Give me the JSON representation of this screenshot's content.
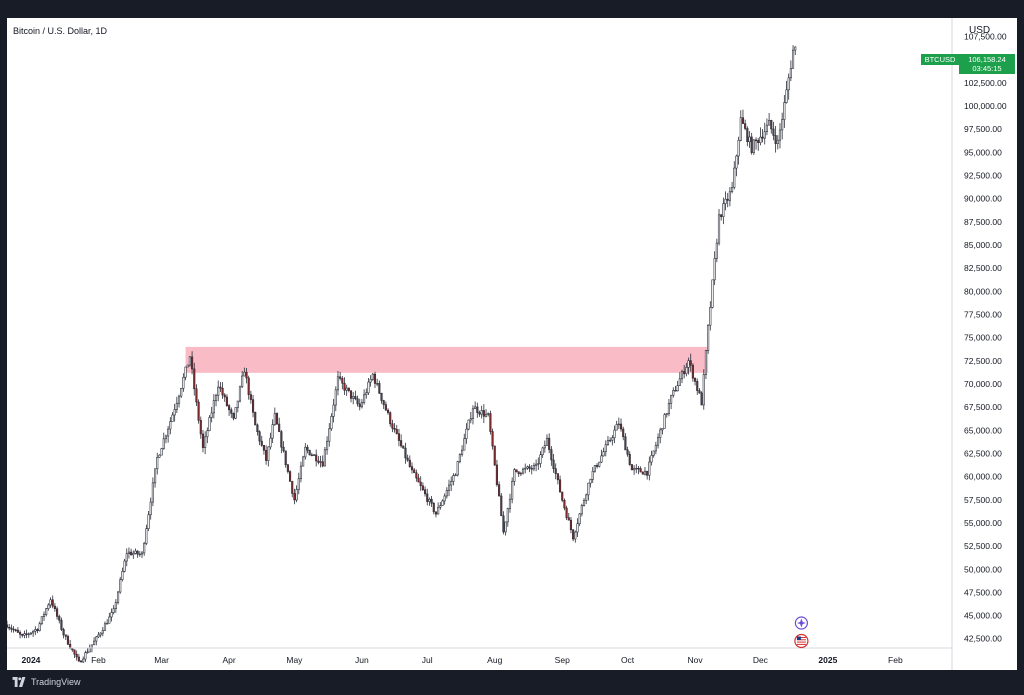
{
  "header": {
    "title": "Bitcoin / U.S. Dollar, 1D",
    "currency": "USD"
  },
  "last_price": {
    "symbol": "BTCUSD",
    "price": "106,158.24",
    "countdown": "03:45:15"
  },
  "footer": {
    "brand": "TradingView",
    "icon": "tradingview-logo-icon"
  },
  "colors": {
    "background": "#181c27",
    "up_candle": "#ffffff",
    "down_candle": "#8b2a2a",
    "wick": "#2a2e39",
    "zone_fill": "#f7a6b3",
    "price_tag": "#1ca04b"
  },
  "chart_data": {
    "type": "candlestick",
    "timeframe": "1D",
    "y_range": [
      41500,
      109500
    ],
    "x_range": [
      "2023-12-21",
      "2025-02-27"
    ],
    "y_ticks": [
      "107,500.00",
      "102,500.00",
      "100,000.00",
      "97,500.00",
      "95,000.00",
      "92,500.00",
      "90,000.00",
      "87,500.00",
      "85,000.00",
      "82,500.00",
      "80,000.00",
      "77,500.00",
      "75,000.00",
      "72,500.00",
      "70,000.00",
      "67,500.00",
      "65,000.00",
      "62,500.00",
      "60,000.00",
      "57,500.00",
      "55,000.00",
      "52,500.00",
      "50,000.00",
      "47,500.00",
      "45,000.00",
      "42,500.00"
    ],
    "x_ticks": [
      {
        "label": "Dec",
        "date": "2023-12-01"
      },
      {
        "label": "2024",
        "date": "2024-01-01"
      },
      {
        "label": "Feb",
        "date": "2024-02-01"
      },
      {
        "label": "Mar",
        "date": "2024-03-01"
      },
      {
        "label": "Apr",
        "date": "2024-04-01"
      },
      {
        "label": "May",
        "date": "2024-05-01"
      },
      {
        "label": "Jun",
        "date": "2024-06-01"
      },
      {
        "label": "Jul",
        "date": "2024-07-01"
      },
      {
        "label": "Aug",
        "date": "2024-08-01"
      },
      {
        "label": "Sep",
        "date": "2024-09-01"
      },
      {
        "label": "Oct",
        "date": "2024-10-01"
      },
      {
        "label": "Nov",
        "date": "2024-11-01"
      },
      {
        "label": "Dec",
        "date": "2024-12-01"
      },
      {
        "label": "2025",
        "date": "2025-01-01"
      },
      {
        "label": "Feb",
        "date": "2025-02-01"
      }
    ],
    "price_path": [
      [
        "2023-12-21",
        44000
      ],
      [
        "2023-12-28",
        42700
      ],
      [
        "2024-01-04",
        43600
      ],
      [
        "2024-01-10",
        46800
      ],
      [
        "2024-01-16",
        43000
      ],
      [
        "2024-01-23",
        39900
      ],
      [
        "2024-01-31",
        42500
      ],
      [
        "2024-02-08",
        45500
      ],
      [
        "2024-02-14",
        51800
      ],
      [
        "2024-02-21",
        51600
      ],
      [
        "2024-02-28",
        62000
      ],
      [
        "2024-03-05",
        66000
      ],
      [
        "2024-03-08",
        68200
      ],
      [
        "2024-03-14",
        73000
      ],
      [
        "2024-03-17",
        67800
      ],
      [
        "2024-03-20",
        63000
      ],
      [
        "2024-03-27",
        70000
      ],
      [
        "2024-04-03",
        66000
      ],
      [
        "2024-04-08",
        71600
      ],
      [
        "2024-04-13",
        65500
      ],
      [
        "2024-04-18",
        61800
      ],
      [
        "2024-04-22",
        66500
      ],
      [
        "2024-05-01",
        57500
      ],
      [
        "2024-05-06",
        63000
      ],
      [
        "2024-05-14",
        61500
      ],
      [
        "2024-05-21",
        70500
      ],
      [
        "2024-05-31",
        67500
      ],
      [
        "2024-06-06",
        71000
      ],
      [
        "2024-06-14",
        66000
      ],
      [
        "2024-06-24",
        60500
      ],
      [
        "2024-07-05",
        56000
      ],
      [
        "2024-07-14",
        60500
      ],
      [
        "2024-07-22",
        67500
      ],
      [
        "2024-07-29",
        66500
      ],
      [
        "2024-08-05",
        54000
      ],
      [
        "2024-08-10",
        60500
      ],
      [
        "2024-08-20",
        61000
      ],
      [
        "2024-08-25",
        64000
      ],
      [
        "2024-09-01",
        57500
      ],
      [
        "2024-09-06",
        53500
      ],
      [
        "2024-09-14",
        60000
      ],
      [
        "2024-09-27",
        65800
      ],
      [
        "2024-10-03",
        60700
      ],
      [
        "2024-10-10",
        60500
      ],
      [
        "2024-10-21",
        68500
      ],
      [
        "2024-10-29",
        72500
      ],
      [
        "2024-11-04",
        68000
      ],
      [
        "2024-11-07",
        76000
      ],
      [
        "2024-11-12",
        88000
      ],
      [
        "2024-11-18",
        91000
      ],
      [
        "2024-11-22",
        98500
      ],
      [
        "2024-11-27",
        95500
      ],
      [
        "2024-12-05",
        98000
      ],
      [
        "2024-12-09",
        96000
      ],
      [
        "2024-12-13",
        101500
      ],
      [
        "2024-12-16",
        106000
      ],
      [
        "2024-12-17",
        106158.24
      ]
    ],
    "zone": {
      "from": "2024-03-12",
      "to": "2024-11-07",
      "low": 71200,
      "high": 74000
    },
    "last_price": 106158.24,
    "legend": "none",
    "grid": false,
    "markers": [
      {
        "date": "2024-12-18",
        "icon": "event-star-icon"
      },
      {
        "date": "2024-12-18",
        "icon": "us-flag-icon"
      }
    ]
  }
}
